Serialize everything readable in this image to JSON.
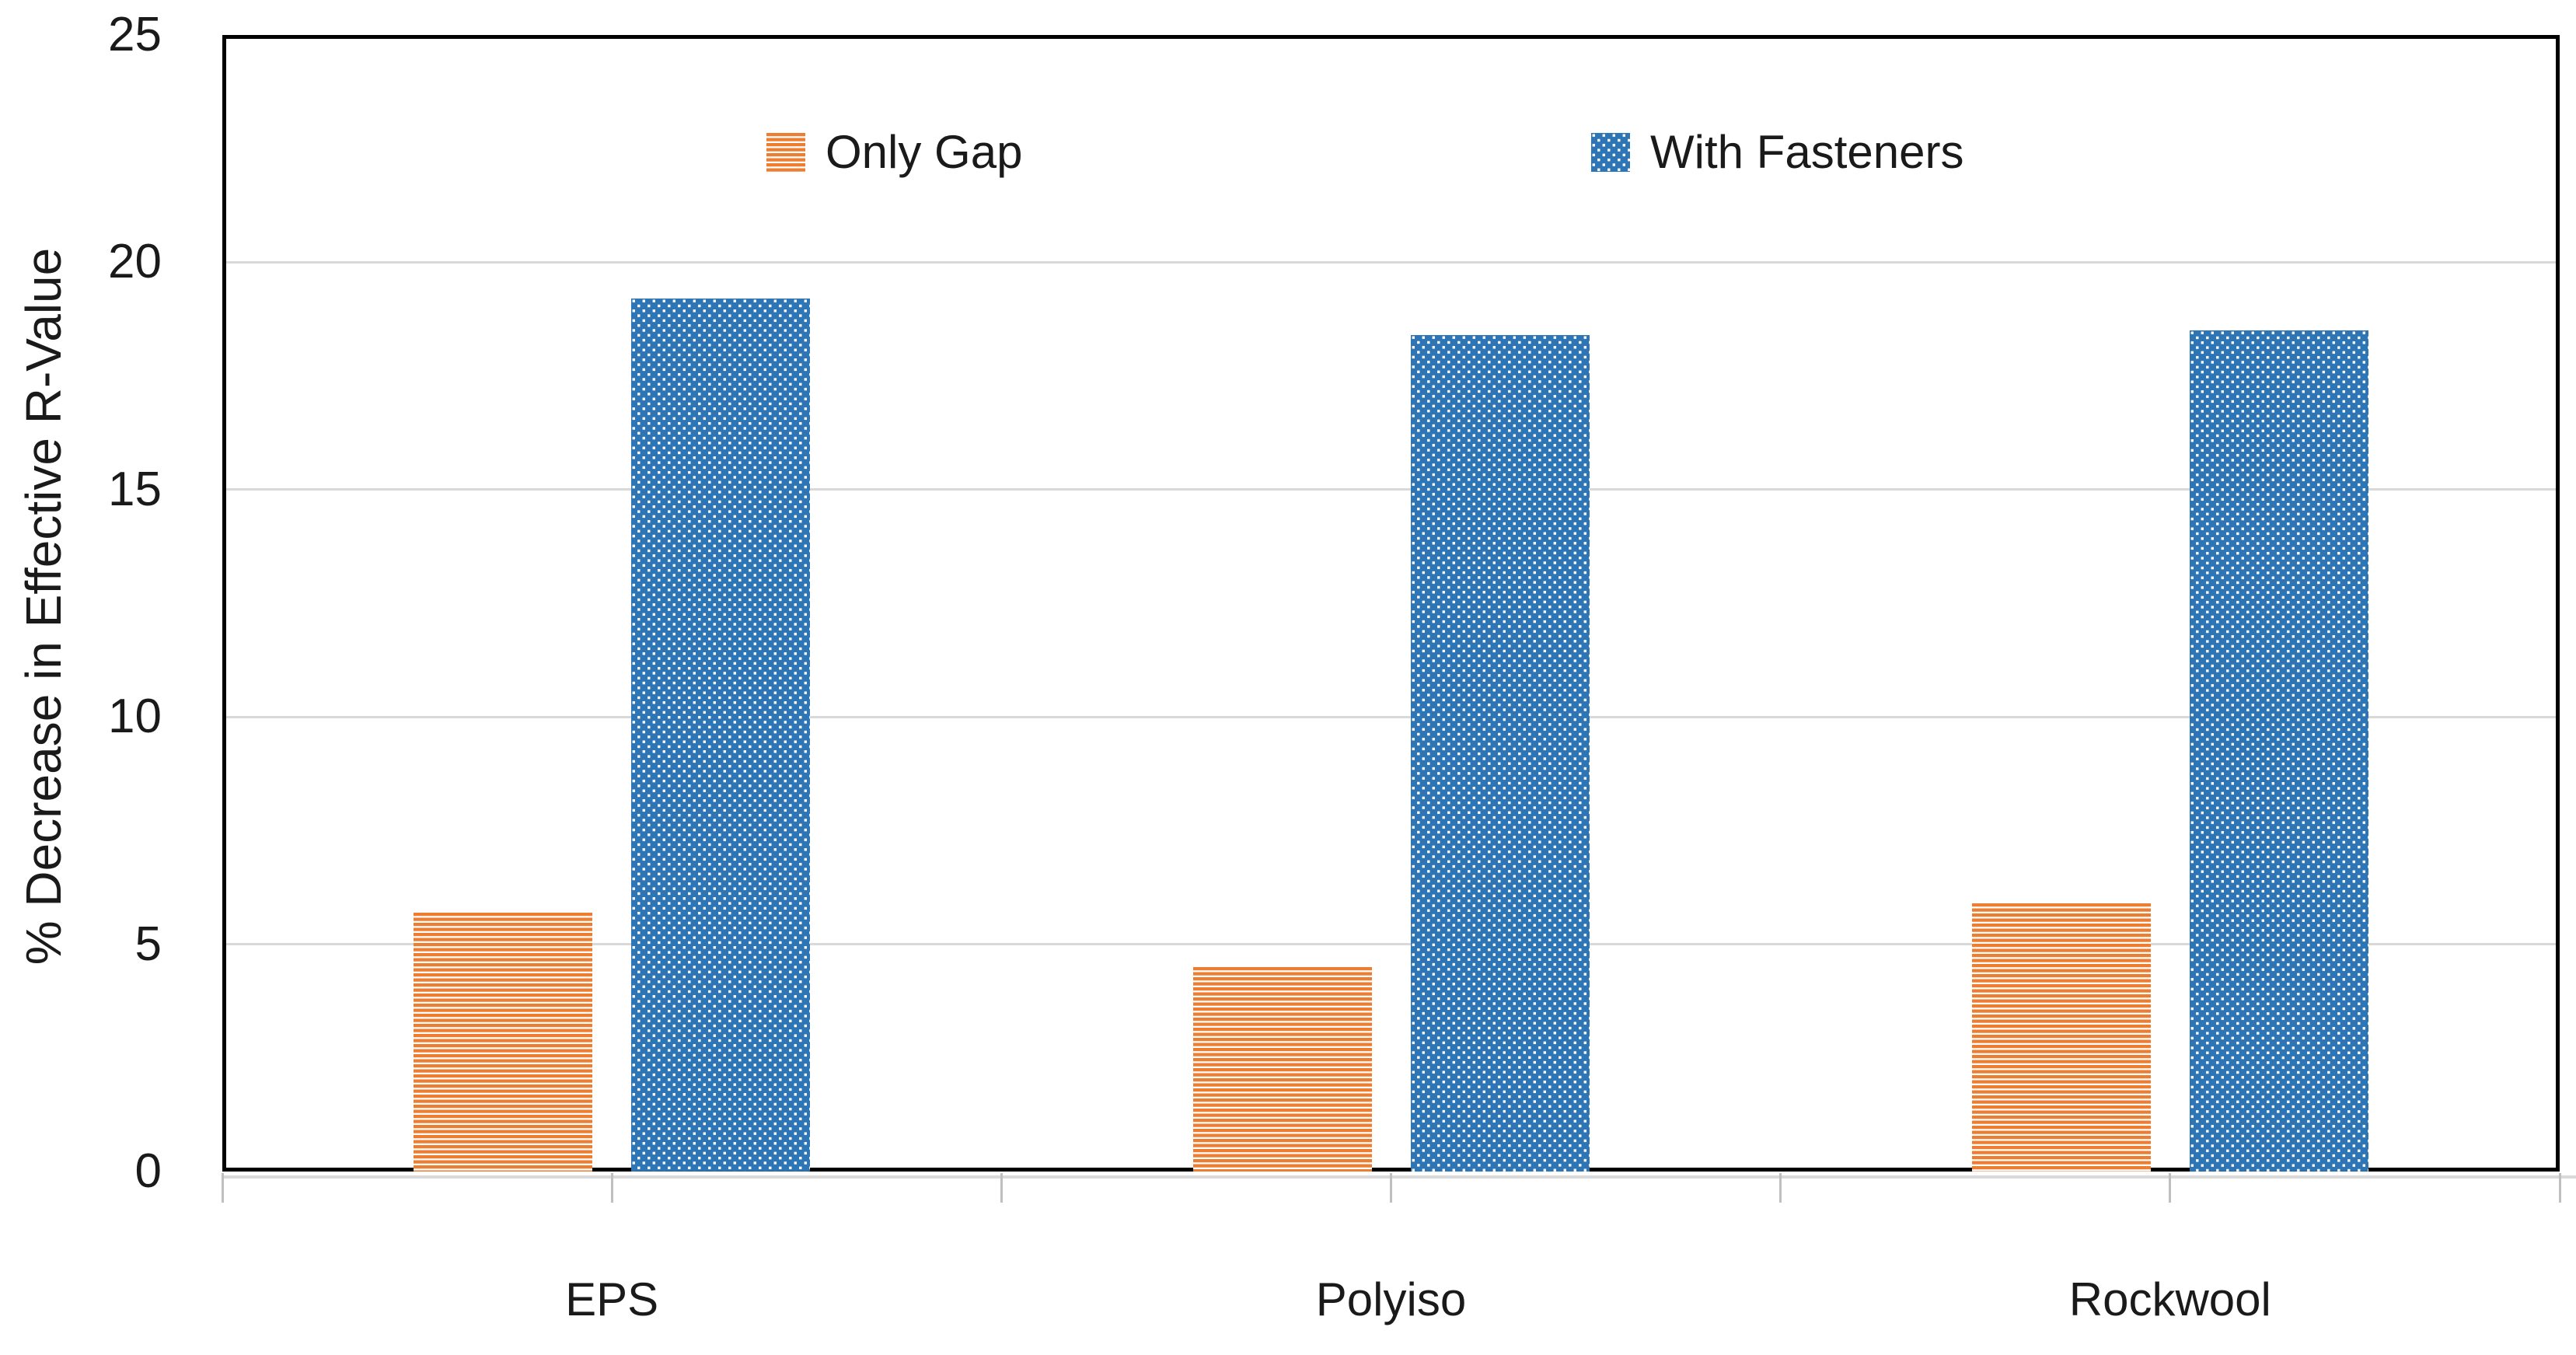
{
  "chart_data": {
    "type": "bar",
    "title": "",
    "xlabel": "",
    "ylabel": "% Decrease in Effective R-Value",
    "ylim": [
      0,
      25
    ],
    "yticks": [
      0,
      5,
      10,
      15,
      20,
      25
    ],
    "grid": "horizontal gridlines every 5 units",
    "legend_position": "top-center-inside",
    "categories": [
      "EPS",
      "Polyiso",
      "Rockwool"
    ],
    "series": [
      {
        "name": "Only Gap",
        "values": [
          5.7,
          4.5,
          5.9
        ],
        "color": "#ED7D31",
        "pattern": "orange horizontal stripes on white"
      },
      {
        "name": "With Fasteners",
        "values": [
          19.2,
          18.4,
          18.5
        ],
        "color": "#2E75B6",
        "pattern": "white square dots on blue"
      }
    ]
  },
  "colors": {
    "background": "#FFFFFF",
    "axis_frame": "#000000",
    "gridline": "#D9D9D9",
    "tick_mark": "#BFBFBF",
    "text": "#1A1A1A",
    "only_gap": "#ED7D31",
    "with_fasteners": "#2E75B6"
  }
}
